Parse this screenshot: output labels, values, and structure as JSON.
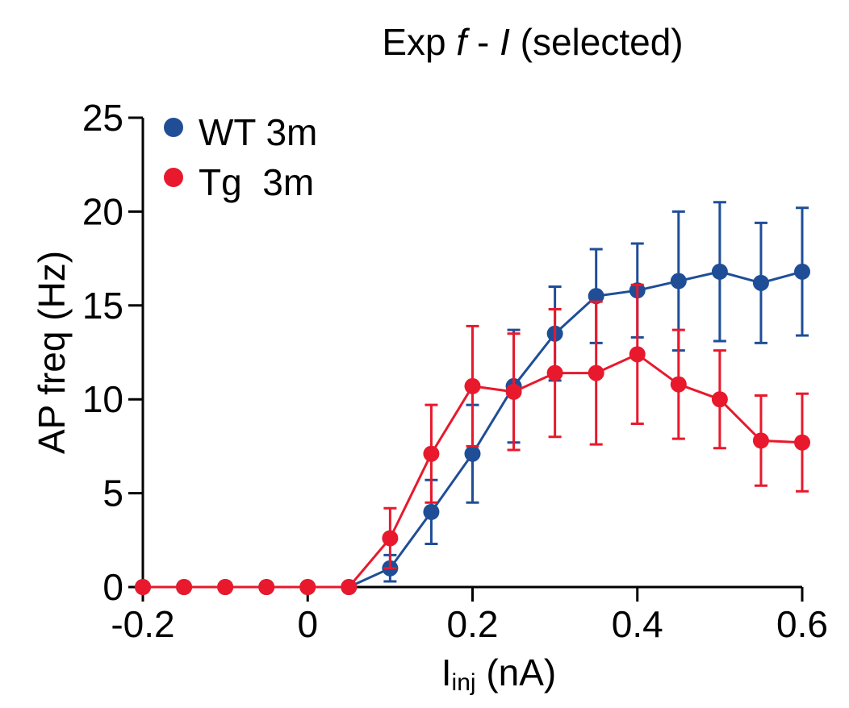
{
  "chart_data": {
    "type": "line",
    "title": {
      "pre": "Exp ",
      "f": "f",
      "mid": " - ",
      "i": "I",
      "post": " (selected)"
    },
    "xlabel": {
      "main": "I",
      "sub": "inj",
      "unit": " (nA)"
    },
    "ylabel": "AP freq (Hz)",
    "xlim": [
      -0.2,
      0.6
    ],
    "ylim": [
      0,
      25
    ],
    "xticks": [
      -0.2,
      0,
      0.2,
      0.4,
      0.6
    ],
    "xtick_labels": [
      "-0.2",
      "0",
      "0.2",
      "0.4",
      "0.6"
    ],
    "yticks": [
      0,
      5,
      10,
      15,
      20,
      25
    ],
    "ytick_labels": [
      "0",
      "5",
      "10",
      "15",
      "20",
      "25"
    ],
    "grid": false,
    "legend_position": "top-left",
    "x": [
      -0.2,
      -0.15,
      -0.1,
      -0.05,
      0,
      0.05,
      0.1,
      0.15,
      0.2,
      0.25,
      0.3,
      0.35,
      0.4,
      0.45,
      0.5,
      0.55,
      0.6
    ],
    "series": [
      {
        "name": "WT 3m",
        "color": "#1f4e97",
        "values": [
          0,
          0,
          0,
          0,
          0,
          0,
          1.0,
          4.0,
          7.1,
          10.7,
          13.5,
          15.5,
          15.8,
          16.3,
          16.8,
          16.2,
          16.8
        ],
        "err": [
          0,
          0,
          0,
          0,
          0,
          0,
          0.7,
          1.7,
          2.6,
          3.0,
          2.5,
          2.5,
          2.5,
          3.7,
          3.7,
          3.2,
          3.4
        ]
      },
      {
        "name": "Tg  3m",
        "color": "#e8192c",
        "values": [
          0,
          0,
          0,
          0,
          0,
          0,
          2.6,
          7.1,
          10.7,
          10.4,
          11.4,
          11.4,
          12.4,
          10.8,
          10.0,
          7.8,
          7.7
        ],
        "err": [
          0,
          0,
          0,
          0,
          0,
          0,
          1.6,
          2.6,
          3.2,
          3.1,
          3.4,
          3.8,
          3.7,
          2.9,
          2.6,
          2.4,
          2.6
        ]
      }
    ]
  }
}
